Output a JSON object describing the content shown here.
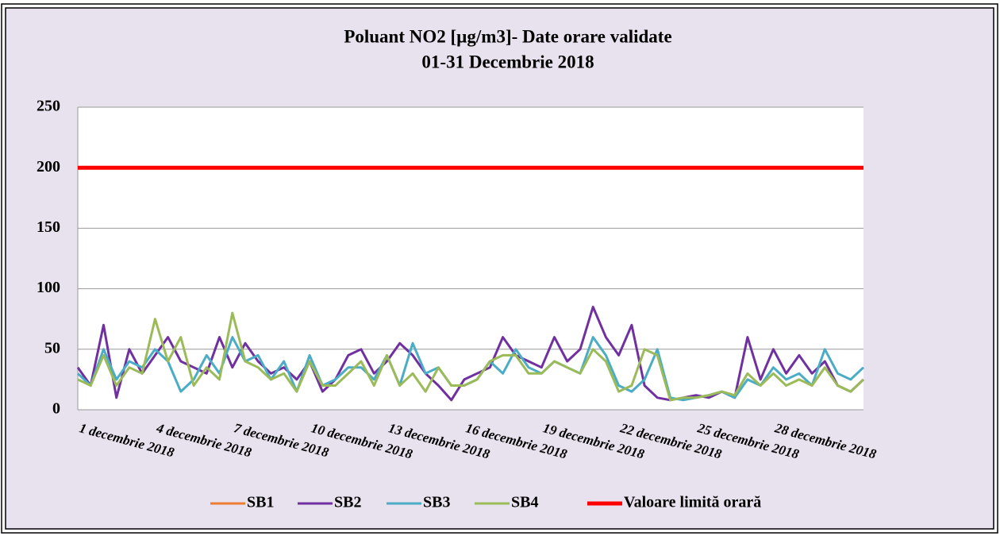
{
  "chart_data": {
    "type": "line",
    "title": "Poluant NO2 [µg/m3]- Date orare validate",
    "subtitle": "01-31 Decembrie 2018",
    "categories": [
      "1 decembrie 2018",
      null,
      null,
      null,
      null,
      null,
      "4 decembrie 2018",
      null,
      null,
      null,
      null,
      null,
      "7 decembrie 2018",
      null,
      null,
      null,
      null,
      null,
      "10 decembrie 2018",
      null,
      null,
      null,
      null,
      null,
      "13 decembrie 2018",
      null,
      null,
      null,
      null,
      null,
      "16 decembrie 2018",
      null,
      null,
      null,
      null,
      null,
      "19 decembrie 2018",
      null,
      null,
      null,
      null,
      null,
      "22 decembrie 2018",
      null,
      null,
      null,
      null,
      null,
      "25 decembrie 2018",
      null,
      null,
      null,
      null,
      null,
      "28 decembrie 2018",
      null,
      null,
      null,
      null,
      null,
      null,
      null
    ],
    "series": [
      {
        "name": "SB1",
        "color": "#ed7d31",
        "values": [
          null,
          null,
          null,
          null,
          null,
          null,
          null,
          null,
          null,
          null,
          null,
          null,
          null,
          null,
          null,
          null,
          null,
          null,
          null,
          null,
          null,
          null,
          null,
          null,
          null,
          null,
          null,
          null,
          null,
          null,
          null,
          null,
          null,
          null,
          null,
          null,
          null,
          null,
          null,
          null,
          null,
          null,
          null,
          null,
          null,
          null,
          null,
          null,
          null,
          null,
          null,
          null,
          null,
          null,
          null,
          null,
          null,
          null,
          null,
          null,
          null,
          null
        ]
      },
      {
        "name": "SB2",
        "color": "#7030a0",
        "values": [
          35,
          20,
          70,
          10,
          50,
          30,
          45,
          60,
          40,
          35,
          30,
          60,
          35,
          55,
          40,
          30,
          35,
          25,
          40,
          15,
          25,
          45,
          50,
          30,
          40,
          55,
          45,
          30,
          20,
          8,
          25,
          30,
          35,
          60,
          45,
          40,
          35,
          60,
          40,
          50,
          85,
          60,
          45,
          70,
          20,
          10,
          8,
          10,
          12,
          10,
          15,
          10,
          60,
          25,
          50,
          30,
          45,
          30,
          40,
          20,
          15,
          25
        ]
      },
      {
        "name": "SB3",
        "color": "#4bacc6",
        "values": [
          30,
          20,
          50,
          25,
          40,
          35,
          50,
          40,
          15,
          25,
          45,
          30,
          60,
          40,
          45,
          25,
          40,
          15,
          45,
          20,
          25,
          35,
          35,
          25,
          45,
          20,
          55,
          30,
          35,
          20,
          20,
          25,
          40,
          30,
          50,
          35,
          30,
          40,
          35,
          30,
          60,
          45,
          20,
          15,
          25,
          50,
          10,
          8,
          10,
          12,
          15,
          10,
          25,
          20,
          35,
          25,
          30,
          20,
          50,
          30,
          25,
          35
        ]
      },
      {
        "name": "SB4",
        "color": "#9bbb59",
        "values": [
          25,
          20,
          45,
          20,
          35,
          30,
          75,
          40,
          60,
          20,
          35,
          25,
          80,
          40,
          35,
          25,
          30,
          15,
          40,
          20,
          20,
          30,
          40,
          20,
          45,
          20,
          30,
          15,
          35,
          20,
          20,
          25,
          40,
          45,
          45,
          30,
          30,
          40,
          35,
          30,
          50,
          40,
          15,
          20,
          50,
          45,
          8,
          10,
          10,
          12,
          15,
          12,
          30,
          20,
          30,
          20,
          25,
          20,
          35,
          20,
          15,
          25
        ]
      },
      {
        "name": "Valoare limită orară",
        "color": "#ff0000",
        "values": [
          200,
          200,
          200,
          200,
          200,
          200,
          200,
          200,
          200,
          200,
          200,
          200,
          200,
          200,
          200,
          200,
          200,
          200,
          200,
          200,
          200,
          200,
          200,
          200,
          200,
          200,
          200,
          200,
          200,
          200,
          200,
          200,
          200,
          200,
          200,
          200,
          200,
          200,
          200,
          200,
          200,
          200,
          200,
          200,
          200,
          200,
          200,
          200,
          200,
          200,
          200,
          200,
          200,
          200,
          200,
          200,
          200,
          200,
          200,
          200,
          200,
          200
        ]
      }
    ],
    "ylim": [
      0,
      250
    ],
    "yticks": [
      0,
      50,
      100,
      150,
      200,
      250
    ],
    "grid": true,
    "legend": "bottom"
  }
}
